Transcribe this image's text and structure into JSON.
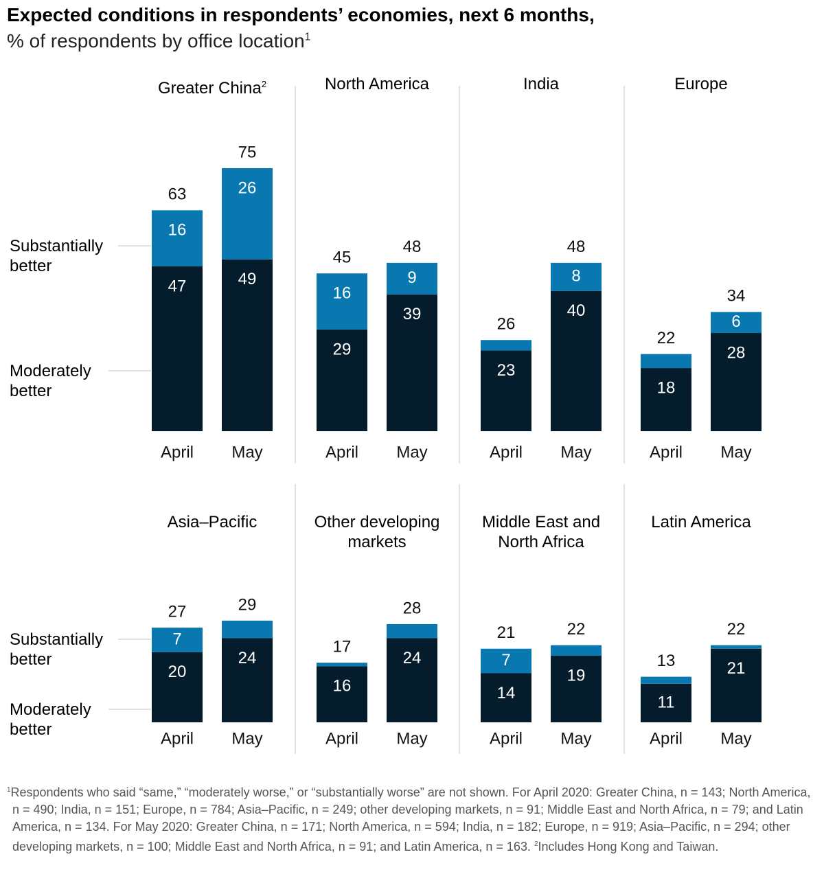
{
  "title": "Expected conditions in respondents’ economies, next 6 months,",
  "subtitle": "% of respondents by office location",
  "subtitle_superscript": "1",
  "chart_data": [
    {
      "type": "stacked_bar",
      "title": "Greater China",
      "title_superscript": "2",
      "categories": [
        "April",
        "May"
      ],
      "series": [
        {
          "name": "Moderately better",
          "color": "#051c2c",
          "values": [
            47,
            49
          ]
        },
        {
          "name": "Substantially better",
          "color": "#0a78b0",
          "values": [
            16,
            26
          ]
        }
      ],
      "totals": [
        63,
        75
      ],
      "ylim": [
        0,
        75
      ]
    },
    {
      "type": "stacked_bar",
      "title": "North America",
      "categories": [
        "April",
        "May"
      ],
      "series": [
        {
          "name": "Moderately better",
          "color": "#051c2c",
          "values": [
            29,
            39
          ]
        },
        {
          "name": "Substantially better",
          "color": "#0a78b0",
          "values": [
            16,
            9
          ]
        }
      ],
      "totals": [
        45,
        48
      ],
      "ylim": [
        0,
        75
      ]
    },
    {
      "type": "stacked_bar",
      "title": "India",
      "categories": [
        "April",
        "May"
      ],
      "series": [
        {
          "name": "Moderately better",
          "color": "#051c2c",
          "values": [
            23,
            40
          ]
        },
        {
          "name": "Substantially better",
          "color": "#0a78b0",
          "values": [
            3,
            8
          ]
        }
      ],
      "totals": [
        26,
        48
      ],
      "ylim": [
        0,
        75
      ]
    },
    {
      "type": "stacked_bar",
      "title": "Europe",
      "categories": [
        "April",
        "May"
      ],
      "series": [
        {
          "name": "Moderately better",
          "color": "#051c2c",
          "values": [
            18,
            28
          ]
        },
        {
          "name": "Substantially better",
          "color": "#0a78b0",
          "values": [
            4,
            6
          ]
        }
      ],
      "totals": [
        22,
        34
      ],
      "ylim": [
        0,
        75
      ]
    },
    {
      "type": "stacked_bar",
      "title": "Asia–Pacific",
      "categories": [
        "April",
        "May"
      ],
      "series": [
        {
          "name": "Moderately better",
          "color": "#051c2c",
          "values": [
            20,
            24
          ]
        },
        {
          "name": "Substantially better",
          "color": "#0a78b0",
          "values": [
            7,
            5
          ]
        }
      ],
      "totals": [
        27,
        29
      ],
      "ylim": [
        0,
        75
      ]
    },
    {
      "type": "stacked_bar",
      "title": "Other developing markets",
      "categories": [
        "April",
        "May"
      ],
      "series": [
        {
          "name": "Moderately better",
          "color": "#051c2c",
          "values": [
            16,
            24
          ]
        },
        {
          "name": "Substantially better",
          "color": "#0a78b0",
          "values": [
            1,
            4
          ]
        }
      ],
      "totals": [
        17,
        28
      ],
      "ylim": [
        0,
        75
      ]
    },
    {
      "type": "stacked_bar",
      "title": "Middle East and North Africa",
      "categories": [
        "April",
        "May"
      ],
      "series": [
        {
          "name": "Moderately better",
          "color": "#051c2c",
          "values": [
            14,
            19
          ]
        },
        {
          "name": "Substantially better",
          "color": "#0a78b0",
          "values": [
            7,
            3
          ]
        }
      ],
      "totals": [
        21,
        22
      ],
      "ylim": [
        0,
        75
      ]
    },
    {
      "type": "stacked_bar",
      "title": "Latin America",
      "categories": [
        "April",
        "May"
      ],
      "series": [
        {
          "name": "Moderately better",
          "color": "#051c2c",
          "values": [
            11,
            21
          ]
        },
        {
          "name": "Substantially better",
          "color": "#0a78b0",
          "values": [
            2,
            1
          ]
        }
      ],
      "totals": [
        13,
        22
      ],
      "ylim": [
        0,
        75
      ]
    }
  ],
  "footnotes": [
    {
      "marker": "1",
      "text": "Respondents who said “same,” “moderately worse,” or “substantially worse” are not shown. For April 2020: Greater China, n = 143; North America, n = 490; India, n = 151; Europe, n = 784; Asia–Pacific, n = 249; other developing markets, n = 91; Middle East and North Africa, n = 79; and Latin America, n = 134. For May 2020: Greater China, n = 171; North America, n = 594; India, n = 182; Europe, n = 919; Asia–Pacific, n = 294; other developing markets, n = 100; Middle East and North Africa, n = 91; and Latin America, n = 163."
    },
    {
      "marker": "2",
      "text": "Includes Hong Kong and Taiwan."
    }
  ]
}
